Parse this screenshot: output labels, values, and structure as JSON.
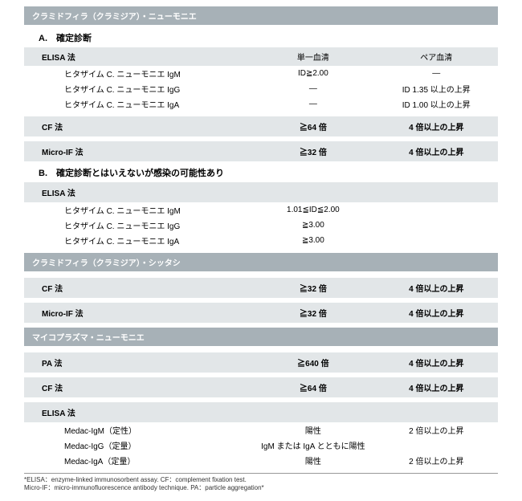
{
  "sections": [
    {
      "header": "クラミドフィラ（クラミジア）・ニューモニエ",
      "blocks": [
        {
          "title": "A.　確定診断",
          "groups": [
            {
              "method": "ELISA 法",
              "col2": "単一血清",
              "col3": "ペア血清",
              "headerStyle": true,
              "rows": [
                {
                  "c1": "ヒタザイム C. ニューモニエ IgM",
                  "c2": "ID≧2.00",
                  "c3": "―"
                },
                {
                  "c1": "ヒタザイム C. ニューモニエ IgG",
                  "c2": "―",
                  "c3": "ID 1.35 以上の上昇"
                },
                {
                  "c1": "ヒタザイム C. ニューモニエ IgA",
                  "c2": "―",
                  "c3": "ID 1.00 以上の上昇"
                }
              ]
            },
            {
              "method": "CF 法",
              "col2": "≧64 倍",
              "col3": "4 倍以上の上昇",
              "rows": []
            },
            {
              "method": "Micro-IF 法",
              "col2": "≧32 倍",
              "col3": "4 倍以上の上昇",
              "rows": []
            }
          ]
        },
        {
          "title": "B.　確定診断とはいえないが感染の可能性あり",
          "groups": [
            {
              "method": "ELISA 法",
              "col2": "",
              "col3": "",
              "rows": [
                {
                  "c1": "ヒタザイム C. ニューモニエ IgM",
                  "c2": "1.01≦ID≦2.00",
                  "c3": ""
                },
                {
                  "c1": "ヒタザイム C. ニューモニエ IgG",
                  "c2": "≧3.00",
                  "c3": ""
                },
                {
                  "c1": "ヒタザイム C. ニューモニエ IgA",
                  "c2": "≧3.00",
                  "c3": ""
                }
              ]
            }
          ]
        }
      ]
    },
    {
      "header": "クラミドフィラ（クラミジア）・シッタシ",
      "blocks": [
        {
          "title": "",
          "groups": [
            {
              "method": "CF 法",
              "col2": "≧32 倍",
              "col3": "4 倍以上の上昇",
              "rows": []
            },
            {
              "method": "Micro-IF 法",
              "col2": "≧32 倍",
              "col3": "4 倍以上の上昇",
              "rows": []
            }
          ]
        }
      ]
    },
    {
      "header": "マイコプラズマ・ニューモニエ",
      "blocks": [
        {
          "title": "",
          "groups": [
            {
              "method": "PA 法",
              "col2": "≧640 倍",
              "col3": "4 倍以上の上昇",
              "rows": []
            },
            {
              "method": "CF 法",
              "col2": "≧64 倍",
              "col3": "4 倍以上の上昇",
              "rows": []
            },
            {
              "method": "ELISA 法",
              "col2": "",
              "col3": "",
              "rows": [
                {
                  "c1": "Medac-IgM（定性）",
                  "c2": "陽性",
                  "c3": "2 倍以上の上昇"
                },
                {
                  "c1": "Medac-IgG（定量）",
                  "c2": "IgM または IgA とともに陽性",
                  "c3": ""
                },
                {
                  "c1": "Medac-IgA（定量）",
                  "c2": "陽性",
                  "c3": "2 倍以上の上昇"
                }
              ]
            }
          ]
        }
      ]
    }
  ],
  "footnote1": "*ELISA：enzyme-linked immunosorbent assay. CF：complement fixation test.",
  "footnote2": "Micro-IF：micro-immunofluorescence antibody technique. PA：particle aggregation*"
}
